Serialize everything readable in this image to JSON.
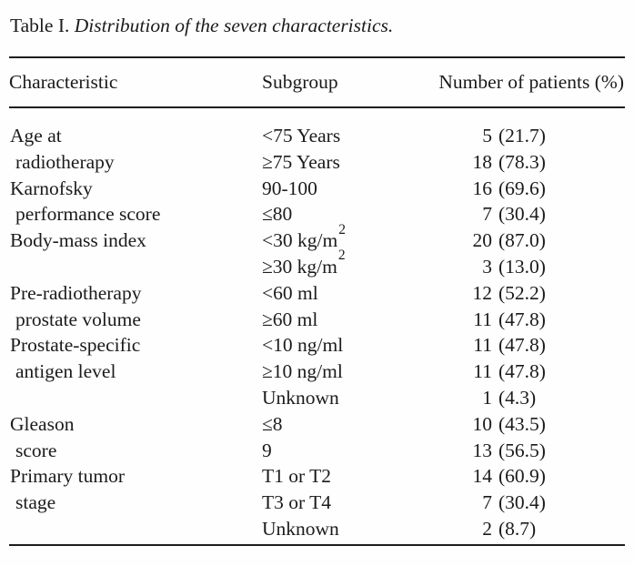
{
  "title": {
    "label": "Table I.",
    "caption": "Distribution of the seven characteristics."
  },
  "table": {
    "headers": {
      "characteristic": "Characteristic",
      "subgroup": "Subgroup",
      "patients": "Number of patients (%)"
    },
    "rows": [
      {
        "characteristic": "Age at",
        "indent": false,
        "subgroup": "<75 Years",
        "subgroup_sup": "",
        "count": "5",
        "pct": "(21.7)"
      },
      {
        "characteristic": "radiotherapy",
        "indent": true,
        "subgroup": "≥75 Years",
        "subgroup_sup": "",
        "count": "18",
        "pct": "(78.3)"
      },
      {
        "characteristic": "Karnofsky",
        "indent": false,
        "subgroup": "90-100",
        "subgroup_sup": "",
        "count": "16",
        "pct": "(69.6)"
      },
      {
        "characteristic": "performance score",
        "indent": true,
        "subgroup": "≤80",
        "subgroup_sup": "",
        "count": "7",
        "pct": "(30.4)"
      },
      {
        "characteristic": "Body-mass index",
        "indent": false,
        "subgroup": "<30 kg/m",
        "subgroup_sup": "2",
        "count": "20",
        "pct": "(87.0)"
      },
      {
        "characteristic": "",
        "indent": false,
        "subgroup": "≥30 kg/m",
        "subgroup_sup": "2",
        "count": "3",
        "pct": "(13.0)"
      },
      {
        "characteristic": "Pre-radiotherapy",
        "indent": false,
        "subgroup": "<60 ml",
        "subgroup_sup": "",
        "count": "12",
        "pct": "(52.2)"
      },
      {
        "characteristic": "prostate volume",
        "indent": true,
        "subgroup": "≥60 ml",
        "subgroup_sup": "",
        "count": "11",
        "pct": "(47.8)"
      },
      {
        "characteristic": "Prostate-specific",
        "indent": false,
        "subgroup": "<10 ng/ml",
        "subgroup_sup": "",
        "count": "11",
        "pct": "(47.8)"
      },
      {
        "characteristic": "antigen level",
        "indent": true,
        "subgroup": "≥10 ng/ml",
        "subgroup_sup": "",
        "count": "11",
        "pct": "(47.8)"
      },
      {
        "characteristic": "",
        "indent": false,
        "subgroup": "Unknown",
        "subgroup_sup": "",
        "count": "1",
        "pct": "(4.3)"
      },
      {
        "characteristic": "Gleason",
        "indent": false,
        "subgroup": "≤8",
        "subgroup_sup": "",
        "count": "10",
        "pct": "(43.5)"
      },
      {
        "characteristic": "score",
        "indent": true,
        "subgroup": "9",
        "subgroup_sup": "",
        "count": "13",
        "pct": "(56.5)"
      },
      {
        "characteristic": "Primary tumor",
        "indent": false,
        "subgroup": "T1 or T2",
        "subgroup_sup": "",
        "count": "14",
        "pct": "(60.9)"
      },
      {
        "characteristic": "stage",
        "indent": true,
        "subgroup": "T3 or T4",
        "subgroup_sup": "",
        "count": "7",
        "pct": "(30.4)"
      },
      {
        "characteristic": "",
        "indent": false,
        "subgroup": "Unknown",
        "subgroup_sup": "",
        "count": "2",
        "pct": "(8.7)"
      }
    ]
  }
}
